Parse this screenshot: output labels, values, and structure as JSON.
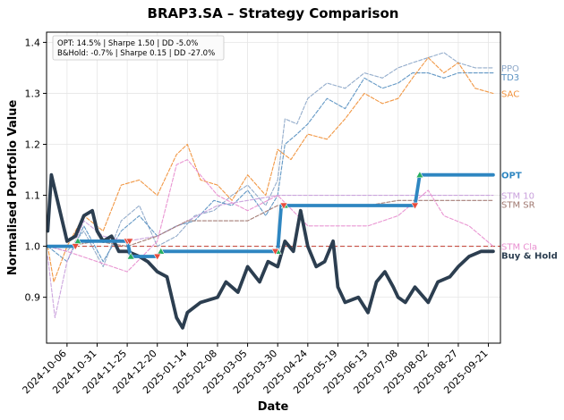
{
  "chart_data": {
    "type": "line",
    "title": "BRAP3.SA – Strategy Comparison",
    "xlabel": "Date",
    "ylabel": "Normalised Portfolio Value",
    "xlim": [
      "2024-09-19",
      "2025-10-01"
    ],
    "ylim": [
      0.81,
      1.42
    ],
    "grid": true,
    "xticks": [
      "2024-10-06",
      "2024-10-31",
      "2024-11-25",
      "2024-12-20",
      "2025-01-14",
      "2025-02-08",
      "2025-03-05",
      "2025-03-30",
      "2025-04-24",
      "2025-05-19",
      "2025-06-13",
      "2025-07-08",
      "2025-08-02",
      "2025-08-27",
      "2025-09-21"
    ],
    "yticks": [
      0.9,
      1.0,
      1.1,
      1.2,
      1.3,
      1.4
    ],
    "stats_box": [
      "OPT: 14.5% | Sharpe 1.50 | DD -5.0%",
      "B&Hold: -0.7% | Sharpe 0.15 | DD -27.0%"
    ],
    "buy_hold_reference": 1.0,
    "series": [
      {
        "name": "PPO",
        "color": "#8da8c8",
        "style": "dashed",
        "end_value": 1.35,
        "points": [
          [
            "2024-09-20",
            1.0
          ],
          [
            "2024-10-06",
            0.99
          ],
          [
            "2024-10-20",
            1.03
          ],
          [
            "2024-11-05",
            0.96
          ],
          [
            "2024-11-20",
            1.05
          ],
          [
            "2024-12-05",
            1.08
          ],
          [
            "2024-12-20",
            1.0
          ],
          [
            "2025-01-05",
            1.02
          ],
          [
            "2025-01-20",
            1.06
          ],
          [
            "2025-02-05",
            1.07
          ],
          [
            "2025-02-20",
            1.1
          ],
          [
            "2025-03-05",
            1.12
          ],
          [
            "2025-03-20",
            1.08
          ],
          [
            "2025-03-30",
            1.13
          ],
          [
            "2025-04-05",
            1.25
          ],
          [
            "2025-04-15",
            1.24
          ],
          [
            "2025-04-24",
            1.29
          ],
          [
            "2025-05-10",
            1.32
          ],
          [
            "2025-05-25",
            1.31
          ],
          [
            "2025-06-10",
            1.34
          ],
          [
            "2025-06-25",
            1.33
          ],
          [
            "2025-07-08",
            1.35
          ],
          [
            "2025-07-20",
            1.36
          ],
          [
            "2025-08-02",
            1.37
          ],
          [
            "2025-08-15",
            1.38
          ],
          [
            "2025-08-27",
            1.36
          ],
          [
            "2025-09-10",
            1.35
          ],
          [
            "2025-09-25",
            1.35
          ]
        ]
      },
      {
        "name": "TD3",
        "color": "#5b92c2",
        "style": "dashed",
        "end_value": 1.34,
        "points": [
          [
            "2024-09-20",
            1.0
          ],
          [
            "2024-10-06",
            0.97
          ],
          [
            "2024-10-20",
            1.04
          ],
          [
            "2024-11-05",
            0.97
          ],
          [
            "2024-11-20",
            1.03
          ],
          [
            "2024-12-05",
            1.06
          ],
          [
            "2024-12-20",
            1.02
          ],
          [
            "2025-01-05",
            1.04
          ],
          [
            "2025-01-20",
            1.05
          ],
          [
            "2025-02-05",
            1.09
          ],
          [
            "2025-02-20",
            1.08
          ],
          [
            "2025-03-05",
            1.11
          ],
          [
            "2025-03-20",
            1.06
          ],
          [
            "2025-03-30",
            1.1
          ],
          [
            "2025-04-05",
            1.2
          ],
          [
            "2025-04-15",
            1.22
          ],
          [
            "2025-04-24",
            1.24
          ],
          [
            "2025-05-10",
            1.29
          ],
          [
            "2025-05-25",
            1.27
          ],
          [
            "2025-06-10",
            1.33
          ],
          [
            "2025-06-25",
            1.31
          ],
          [
            "2025-07-08",
            1.32
          ],
          [
            "2025-07-20",
            1.34
          ],
          [
            "2025-08-02",
            1.34
          ],
          [
            "2025-08-15",
            1.33
          ],
          [
            "2025-08-27",
            1.34
          ],
          [
            "2025-09-10",
            1.34
          ],
          [
            "2025-09-25",
            1.34
          ]
        ]
      },
      {
        "name": "SAC",
        "color": "#f0913a",
        "style": "dashed",
        "end_value": 1.3,
        "points": [
          [
            "2024-09-20",
            1.0
          ],
          [
            "2024-09-25",
            0.93
          ],
          [
            "2024-10-06",
            1.0
          ],
          [
            "2024-10-20",
            1.06
          ],
          [
            "2024-11-05",
            1.03
          ],
          [
            "2024-11-20",
            1.12
          ],
          [
            "2024-12-05",
            1.13
          ],
          [
            "2024-12-20",
            1.1
          ],
          [
            "2025-01-05",
            1.18
          ],
          [
            "2025-01-14",
            1.2
          ],
          [
            "2025-01-25",
            1.13
          ],
          [
            "2025-02-08",
            1.12
          ],
          [
            "2025-02-20",
            1.09
          ],
          [
            "2025-03-05",
            1.14
          ],
          [
            "2025-03-20",
            1.1
          ],
          [
            "2025-03-30",
            1.19
          ],
          [
            "2025-04-10",
            1.17
          ],
          [
            "2025-04-24",
            1.22
          ],
          [
            "2025-05-10",
            1.21
          ],
          [
            "2025-05-25",
            1.25
          ],
          [
            "2025-06-10",
            1.3
          ],
          [
            "2025-06-25",
            1.28
          ],
          [
            "2025-07-08",
            1.29
          ],
          [
            "2025-07-20",
            1.33
          ],
          [
            "2025-08-02",
            1.37
          ],
          [
            "2025-08-15",
            1.34
          ],
          [
            "2025-08-27",
            1.36
          ],
          [
            "2025-09-10",
            1.31
          ],
          [
            "2025-09-25",
            1.3
          ]
        ]
      },
      {
        "name": "STM 10",
        "color": "#c9a0dc",
        "style": "dashed",
        "end_value": 1.1,
        "points": [
          [
            "2024-09-20",
            0.98
          ],
          [
            "2024-09-26",
            0.86
          ],
          [
            "2024-10-06",
            0.97
          ],
          [
            "2024-10-20",
            1.05
          ],
          [
            "2024-11-05",
            1.02
          ],
          [
            "2024-11-25",
            1.01
          ],
          [
            "2024-12-20",
            1.02
          ],
          [
            "2025-01-14",
            1.05
          ],
          [
            "2025-02-08",
            1.08
          ],
          [
            "2025-03-05",
            1.09
          ],
          [
            "2025-03-30",
            1.1
          ],
          [
            "2025-04-24",
            1.1
          ],
          [
            "2025-05-19",
            1.1
          ],
          [
            "2025-06-13",
            1.1
          ],
          [
            "2025-07-08",
            1.1
          ],
          [
            "2025-08-02",
            1.1
          ],
          [
            "2025-08-27",
            1.1
          ],
          [
            "2025-09-25",
            1.1
          ]
        ]
      },
      {
        "name": "STM SR",
        "color": "#a07870",
        "style": "dashed",
        "end_value": 1.09,
        "points": [
          [
            "2024-09-20",
            1.0
          ],
          [
            "2024-10-06",
            1.0
          ],
          [
            "2024-10-31",
            1.01
          ],
          [
            "2024-11-25",
            1.0
          ],
          [
            "2024-12-20",
            1.02
          ],
          [
            "2025-01-14",
            1.05
          ],
          [
            "2025-02-08",
            1.05
          ],
          [
            "2025-03-05",
            1.05
          ],
          [
            "2025-03-30",
            1.08
          ],
          [
            "2025-04-24",
            1.08
          ],
          [
            "2025-05-19",
            1.08
          ],
          [
            "2025-06-13",
            1.08
          ],
          [
            "2025-07-08",
            1.09
          ],
          [
            "2025-08-02",
            1.09
          ],
          [
            "2025-08-27",
            1.09
          ],
          [
            "2025-09-25",
            1.09
          ]
        ]
      },
      {
        "name": "STM Cla",
        "color": "#e88fd0",
        "style": "dashed",
        "end_value": 1.0,
        "points": [
          [
            "2024-09-20",
            1.0
          ],
          [
            "2024-10-06",
            0.99
          ],
          [
            "2024-10-31",
            0.97
          ],
          [
            "2024-11-25",
            0.95
          ],
          [
            "2024-12-20",
            1.01
          ],
          [
            "2025-01-05",
            1.16
          ],
          [
            "2025-01-14",
            1.17
          ],
          [
            "2025-02-08",
            1.1
          ],
          [
            "2025-03-05",
            1.07
          ],
          [
            "2025-03-30",
            1.1
          ],
          [
            "2025-04-24",
            1.04
          ],
          [
            "2025-05-19",
            1.04
          ],
          [
            "2025-06-13",
            1.04
          ],
          [
            "2025-07-08",
            1.06
          ],
          [
            "2025-08-02",
            1.11
          ],
          [
            "2025-08-15",
            1.06
          ],
          [
            "2025-09-05",
            1.04
          ],
          [
            "2025-09-25",
            1.0
          ]
        ]
      },
      {
        "name": "Buy & Hold",
        "color": "#2c3e50",
        "style": "solid-thick",
        "end_value": 0.99,
        "points": [
          [
            "2024-09-20",
            1.03
          ],
          [
            "2024-09-23",
            1.14
          ],
          [
            "2024-09-27",
            1.1
          ],
          [
            "2024-10-06",
            1.01
          ],
          [
            "2024-10-13",
            1.02
          ],
          [
            "2024-10-20",
            1.06
          ],
          [
            "2024-10-27",
            1.07
          ],
          [
            "2024-10-31",
            1.03
          ],
          [
            "2024-11-05",
            1.01
          ],
          [
            "2024-11-12",
            1.02
          ],
          [
            "2024-11-18",
            0.99
          ],
          [
            "2024-11-25",
            0.99
          ],
          [
            "2024-12-05",
            0.98
          ],
          [
            "2024-12-12",
            0.97
          ],
          [
            "2024-12-20",
            0.95
          ],
          [
            "2024-12-28",
            0.94
          ],
          [
            "2025-01-05",
            0.86
          ],
          [
            "2025-01-10",
            0.84
          ],
          [
            "2025-01-14",
            0.87
          ],
          [
            "2025-01-25",
            0.89
          ],
          [
            "2025-02-08",
            0.9
          ],
          [
            "2025-02-15",
            0.93
          ],
          [
            "2025-02-25",
            0.91
          ],
          [
            "2025-03-05",
            0.96
          ],
          [
            "2025-03-15",
            0.93
          ],
          [
            "2025-03-22",
            0.97
          ],
          [
            "2025-03-30",
            0.96
          ],
          [
            "2025-04-05",
            1.01
          ],
          [
            "2025-04-12",
            0.99
          ],
          [
            "2025-04-18",
            1.07
          ],
          [
            "2025-04-24",
            1.0
          ],
          [
            "2025-05-01",
            0.96
          ],
          [
            "2025-05-08",
            0.97
          ],
          [
            "2025-05-15",
            1.01
          ],
          [
            "2025-05-19",
            0.92
          ],
          [
            "2025-05-25",
            0.89
          ],
          [
            "2025-06-05",
            0.9
          ],
          [
            "2025-06-13",
            0.87
          ],
          [
            "2025-06-20",
            0.93
          ],
          [
            "2025-06-27",
            0.95
          ],
          [
            "2025-07-04",
            0.92
          ],
          [
            "2025-07-08",
            0.9
          ],
          [
            "2025-07-14",
            0.89
          ],
          [
            "2025-07-22",
            0.92
          ],
          [
            "2025-08-02",
            0.89
          ],
          [
            "2025-08-10",
            0.93
          ],
          [
            "2025-08-20",
            0.94
          ],
          [
            "2025-08-27",
            0.96
          ],
          [
            "2025-09-05",
            0.98
          ],
          [
            "2025-09-15",
            0.99
          ],
          [
            "2025-09-25",
            0.99
          ]
        ]
      },
      {
        "name": "OPT",
        "color": "#2e86c1",
        "style": "solid-thick",
        "end_value": 1.14,
        "points": [
          [
            "2024-09-20",
            1.0
          ],
          [
            "2024-10-13",
            1.0
          ],
          [
            "2024-10-15",
            1.01
          ],
          [
            "2024-11-25",
            1.01
          ],
          [
            "2024-11-28",
            0.98
          ],
          [
            "2024-12-20",
            0.98
          ],
          [
            "2024-12-23",
            0.99
          ],
          [
            "2025-03-30",
            0.99
          ],
          [
            "2025-04-02",
            1.08
          ],
          [
            "2025-04-24",
            1.08
          ],
          [
            "2025-07-22",
            1.08
          ],
          [
            "2025-07-26",
            1.14
          ],
          [
            "2025-09-25",
            1.14
          ]
        ]
      }
    ],
    "trade_markers": {
      "buy": [
        "2024-10-15",
        "2024-11-28",
        "2024-12-23",
        "2025-03-30",
        "2025-04-05",
        "2025-07-26"
      ],
      "sell": [
        "2024-10-13",
        "2024-11-25",
        "2024-11-27",
        "2024-12-20",
        "2025-03-28",
        "2025-04-04",
        "2025-07-22"
      ]
    }
  }
}
